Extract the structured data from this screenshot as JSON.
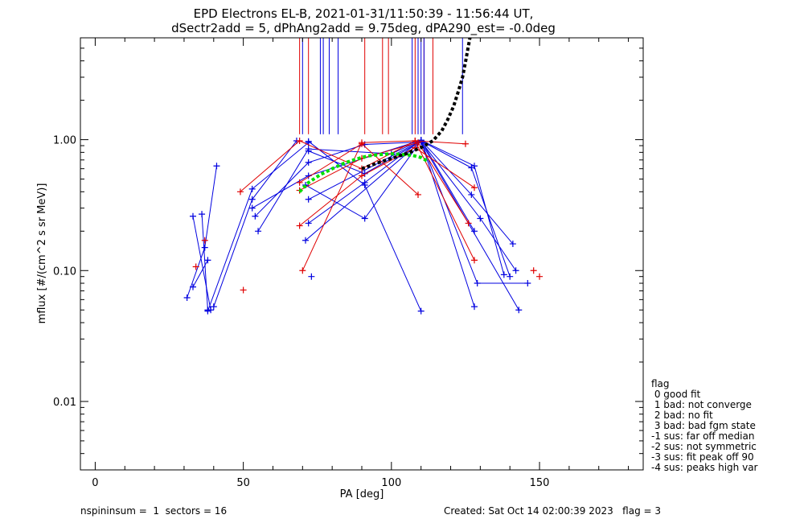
{
  "chart_data": {
    "type": "scatter",
    "title": "EPD Electrons EL-B, 2021-01-31/11:50:39 - 11:56:44 UT,",
    "subtitle": "dSectr2add = 5, dPhAng2add = 9.75deg, dPA290_est=  -0.0deg",
    "xlabel": "PA [deg]",
    "ylabel": "mflux [#/(cm^2 s sr MeV)]",
    "xlim": [
      -5,
      185
    ],
    "ylim": [
      0.003,
      6.0
    ],
    "yscale": "log",
    "xticks": [
      0,
      50,
      100,
      150
    ],
    "xticklabels": [
      "0",
      "50",
      "100",
      "150"
    ],
    "yticks": [
      0.01,
      0.1,
      1.0
    ],
    "yticklabels": [
      "0.01",
      "0.10",
      "1.00"
    ],
    "grid": false,
    "colors": {
      "red": "#e00000",
      "blue": "#0000e0",
      "black": "#000000",
      "green": "#00e000"
    },
    "vertical_lines": {
      "ymin": 1.1,
      "red": [
        69,
        72,
        91,
        97,
        99,
        108,
        111,
        114
      ],
      "blue": [
        70,
        76,
        77,
        79,
        82,
        107,
        109,
        110,
        111,
        124
      ]
    },
    "blue_segments": [
      [
        [
          33,
          0.26
        ],
        [
          39,
          0.05
        ]
      ],
      [
        [
          36,
          0.27
        ],
        [
          38,
          0.05
        ]
      ],
      [
        [
          31,
          0.062
        ],
        [
          37,
          0.15
        ],
        [
          41,
          0.63
        ]
      ],
      [
        [
          33,
          0.075
        ],
        [
          38,
          0.12
        ]
      ],
      [
        [
          40,
          0.053
        ],
        [
          53,
          0.35
        ],
        [
          68,
          0.98
        ]
      ],
      [
        [
          38,
          0.049
        ],
        [
          53,
          0.42
        ],
        [
          72,
          0.95
        ]
      ],
      [
        [
          53,
          0.3
        ],
        [
          72,
          0.53
        ],
        [
          110,
          0.99
        ],
        [
          128,
          0.63
        ],
        [
          138,
          0.093
        ]
      ],
      [
        [
          55,
          0.2
        ],
        [
          72,
          0.85
        ],
        [
          100,
          0.78
        ],
        [
          110,
          0.99
        ],
        [
          127,
          0.38
        ],
        [
          141,
          0.16
        ]
      ],
      [
        [
          54,
          0.26
        ],
        [
          72,
          0.67
        ],
        [
          91,
          0.92
        ],
        [
          110,
          0.96
        ],
        [
          143,
          0.05
        ]
      ],
      [
        [
          71,
          0.17
        ],
        [
          110,
          0.97
        ],
        [
          129,
          0.08
        ],
        [
          146,
          0.08
        ]
      ],
      [
        [
          72,
          0.23
        ],
        [
          91,
          0.47
        ],
        [
          110,
          0.99
        ],
        [
          128,
          0.2
        ]
      ],
      [
        [
          73,
          0.09
        ]
      ],
      [
        [
          71,
          0.45
        ],
        [
          91,
          0.25
        ],
        [
          110,
          0.98
        ],
        [
          127,
          0.61
        ],
        [
          140,
          0.09
        ]
      ],
      [
        [
          72,
          0.82
        ],
        [
          91,
          0.55
        ],
        [
          110,
          0.97
        ],
        [
          130,
          0.25
        ],
        [
          142,
          0.1
        ]
      ],
      [
        [
          72,
          0.35
        ],
        [
          110,
          0.98
        ],
        [
          128,
          0.053
        ]
      ],
      [
        [
          72,
          0.97
        ],
        [
          91,
          0.45
        ],
        [
          110,
          0.049
        ]
      ]
    ],
    "red_segments": [
      [
        [
          34,
          0.107
        ]
      ],
      [
        [
          37,
          0.17
        ]
      ],
      [
        [
          50,
          0.071
        ]
      ],
      [
        [
          49,
          0.4
        ],
        [
          69,
          0.98
        ],
        [
          90,
          0.6
        ],
        [
          108,
          0.98
        ],
        [
          125,
          0.93
        ]
      ],
      [
        [
          69,
          0.22
        ],
        [
          90,
          0.53
        ],
        [
          108,
          0.87
        ],
        [
          128,
          0.43
        ]
      ],
      [
        [
          70,
          0.1
        ],
        [
          90,
          0.95
        ],
        [
          108,
          0.98
        ],
        [
          128,
          0.12
        ]
      ],
      [
        [
          69,
          0.47
        ],
        [
          90,
          0.93
        ],
        [
          109,
          0.38
        ]
      ],
      [
        [
          69,
          0.41
        ],
        [
          90,
          0.72
        ],
        [
          109,
          0.95
        ],
        [
          126,
          0.23
        ]
      ],
      [
        [
          148,
          0.1
        ]
      ],
      [
        [
          150,
          0.09
        ]
      ]
    ],
    "black_fit": [
      [
        90,
        0.6
      ],
      [
        95,
        0.66
      ],
      [
        100,
        0.72
      ],
      [
        105,
        0.78
      ],
      [
        110,
        0.87
      ],
      [
        114,
        0.98
      ],
      [
        117,
        1.17
      ],
      [
        119,
        1.42
      ],
      [
        121,
        1.8
      ],
      [
        122.5,
        2.3
      ],
      [
        124,
        3.0
      ],
      [
        125,
        3.9
      ],
      [
        126,
        5.2
      ],
      [
        126.5,
        6.0
      ]
    ],
    "green_fit": [
      [
        69,
        0.4
      ],
      [
        72,
        0.47
      ],
      [
        76,
        0.54
      ],
      [
        80,
        0.6
      ],
      [
        84,
        0.66
      ],
      [
        88,
        0.71
      ],
      [
        92,
        0.75
      ],
      [
        96,
        0.77
      ],
      [
        100,
        0.78
      ],
      [
        104,
        0.77
      ],
      [
        107,
        0.76
      ],
      [
        110,
        0.73
      ],
      [
        112,
        0.69
      ]
    ]
  },
  "legend": {
    "title": "flag",
    "items": [
      " 0 good fit",
      " 1 bad: not converge",
      " 2 bad: no fit",
      " 3 bad: bad fgm state",
      "-1 sus: far off median",
      "-2 sus: not symmetric",
      "-3 sus: fit peak off 90",
      "-4 sus: peaks high var"
    ]
  },
  "footer": {
    "left": "nspininsum =  1  sectors = 16",
    "right": "Created: Sat Oct 14 02:00:39 2023   flag = 3"
  }
}
